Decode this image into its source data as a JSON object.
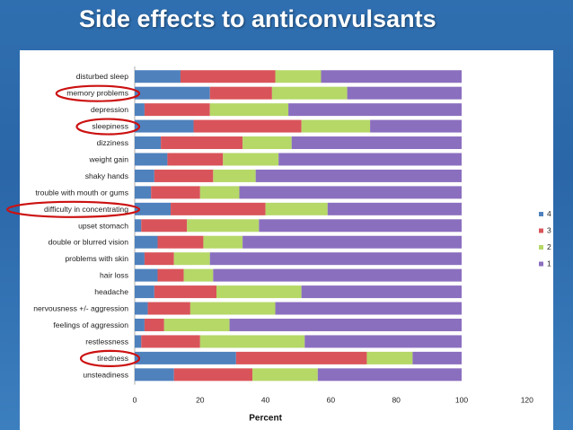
{
  "slide": {
    "title": "Side effects to anticonvulsants"
  },
  "colors": {
    "s4": "#4f81bd",
    "s3": "#d9545a",
    "s2": "#b5d867",
    "s1": "#8b6fbf",
    "highlight": "#cc1111"
  },
  "chart_data": {
    "type": "bar",
    "orientation": "horizontal",
    "stacked": true,
    "categories": [
      "disturbed sleep",
      "memory problems",
      "depression",
      "sleepiness",
      "dizziness",
      "weight gain",
      "shaky hands",
      "trouble with mouth or gums",
      "difficulty in concentrating",
      "upset stomach",
      "double or blurred vision",
      "problems with skin",
      "hair loss",
      "headache",
      "nervousness +/- aggression",
      "feelings of aggression",
      "restlessness",
      "tiredness",
      "unsteadiness"
    ],
    "series": [
      {
        "name": "4",
        "values": [
          14,
          23,
          3,
          18,
          8,
          10,
          6,
          5,
          11,
          2,
          7,
          3,
          7,
          6,
          4,
          3,
          2,
          31,
          12
        ]
      },
      {
        "name": "3",
        "values": [
          29,
          19,
          20,
          33,
          25,
          17,
          18,
          15,
          29,
          14,
          14,
          9,
          8,
          19,
          13,
          6,
          18,
          40,
          24
        ]
      },
      {
        "name": "2",
        "values": [
          14,
          23,
          24,
          21,
          15,
          17,
          13,
          12,
          19,
          22,
          12,
          11,
          9,
          26,
          26,
          20,
          32,
          14,
          20
        ]
      },
      {
        "name": "1",
        "values": [
          43,
          35,
          53,
          28,
          52,
          56,
          63,
          68,
          41,
          62,
          67,
          77,
          76,
          49,
          57,
          71,
          48,
          15,
          44
        ]
      }
    ],
    "xlabel": "Percent",
    "ylabel": "",
    "xlim": [
      0,
      120
    ],
    "xticks": [
      "0",
      "20",
      "40",
      "60",
      "80",
      "100",
      "120"
    ],
    "legend": {
      "position": "right",
      "order": [
        "4",
        "3",
        "2",
        "1"
      ]
    },
    "highlighted": [
      "memory problems",
      "sleepiness",
      "difficulty in concentrating",
      "tiredness"
    ]
  }
}
